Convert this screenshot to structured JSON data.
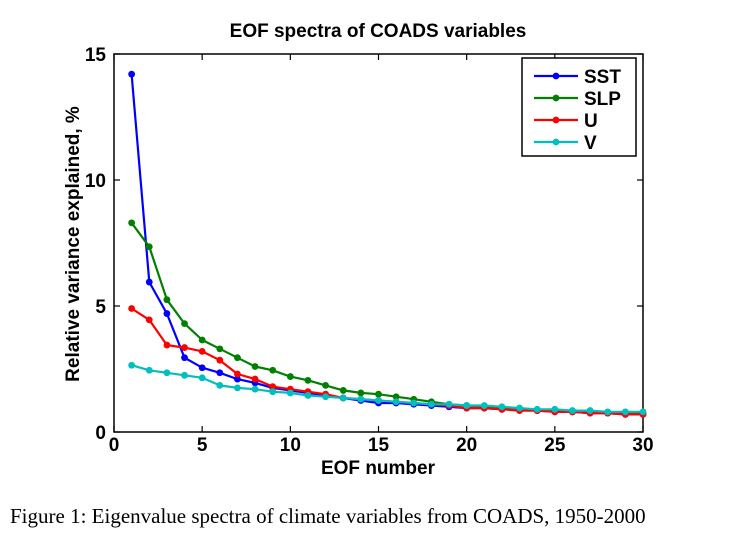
{
  "caption": "Figure 1: Eigenvalue spectra of climate variables from COADS, 1950-2000",
  "chart_data": {
    "type": "line",
    "title": "EOF spectra of COADS variables",
    "xlabel": "EOF number",
    "ylabel": "Relative variance explained, %",
    "xlim": [
      0,
      30
    ],
    "ylim": [
      0,
      15
    ],
    "xticks": [
      0,
      5,
      10,
      15,
      20,
      25,
      30
    ],
    "yticks": [
      0,
      5,
      10,
      15
    ],
    "legend_position": "top-right",
    "x": [
      1,
      2,
      3,
      4,
      5,
      6,
      7,
      8,
      9,
      10,
      11,
      12,
      13,
      14,
      15,
      16,
      17,
      18,
      19,
      20,
      21,
      22,
      23,
      24,
      25,
      26,
      27,
      28,
      29,
      30
    ],
    "series": [
      {
        "name": "SST",
        "color": "#0000ff",
        "values": [
          14.2,
          5.95,
          4.7,
          2.95,
          2.55,
          2.35,
          2.1,
          1.95,
          1.75,
          1.65,
          1.55,
          1.45,
          1.35,
          1.25,
          1.15,
          1.15,
          1.1,
          1.05,
          1.0,
          0.95,
          0.95,
          0.9,
          0.9,
          0.85,
          0.8,
          0.8,
          0.75,
          0.75,
          0.7,
          0.7
        ]
      },
      {
        "name": "SLP",
        "color": "#008000",
        "values": [
          8.3,
          7.35,
          5.25,
          4.3,
          3.65,
          3.3,
          2.95,
          2.6,
          2.45,
          2.2,
          2.05,
          1.85,
          1.65,
          1.55,
          1.5,
          1.4,
          1.3,
          1.2,
          1.1,
          1.05,
          1.0,
          0.95,
          0.9,
          0.85,
          0.85,
          0.8,
          0.8,
          0.75,
          0.75,
          0.75
        ]
      },
      {
        "name": "U",
        "color": "#ff0000",
        "values": [
          4.9,
          4.45,
          3.45,
          3.35,
          3.2,
          2.85,
          2.3,
          2.1,
          1.8,
          1.7,
          1.6,
          1.5,
          1.35,
          1.3,
          1.25,
          1.2,
          1.15,
          1.1,
          1.05,
          0.95,
          0.95,
          0.9,
          0.85,
          0.85,
          0.8,
          0.8,
          0.75,
          0.75,
          0.7,
          0.7
        ]
      },
      {
        "name": "V",
        "color": "#00bfbf",
        "values": [
          2.65,
          2.45,
          2.35,
          2.25,
          2.15,
          1.85,
          1.75,
          1.7,
          1.6,
          1.55,
          1.45,
          1.4,
          1.35,
          1.3,
          1.25,
          1.2,
          1.15,
          1.1,
          1.1,
          1.05,
          1.05,
          1.0,
          0.95,
          0.9,
          0.9,
          0.85,
          0.85,
          0.8,
          0.8,
          0.8
        ]
      }
    ]
  }
}
